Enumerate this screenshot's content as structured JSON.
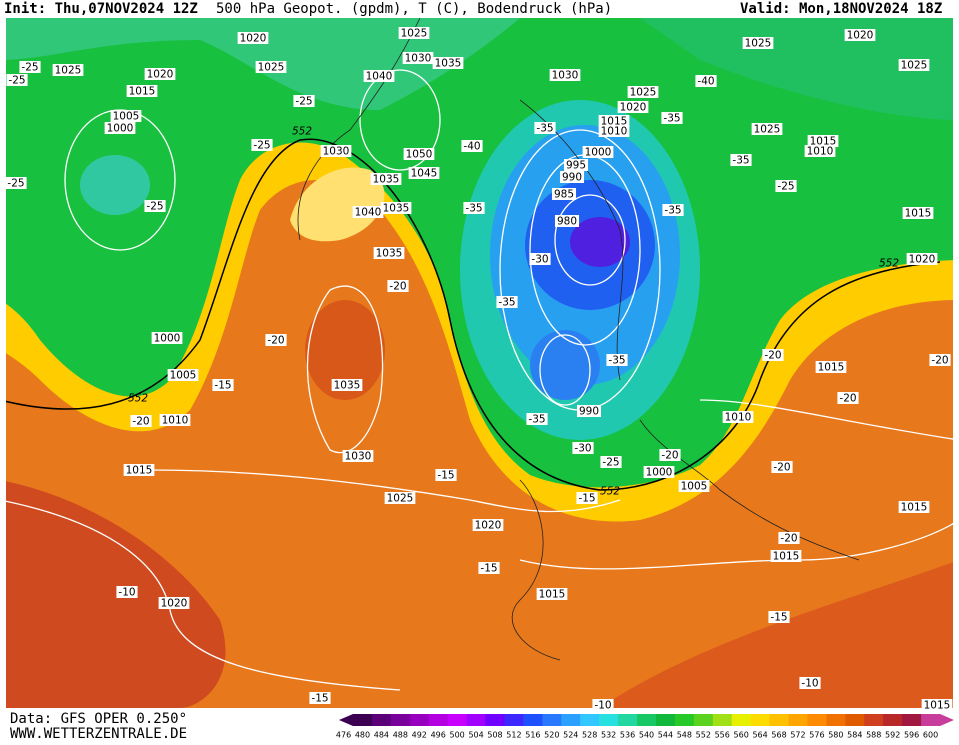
{
  "header": {
    "init": "Init: Thu,07NOV2024 12Z",
    "title": "500 hPa Geopot. (gpdm), T (C), Bodendruck (hPa)",
    "valid": "Valid: Mon,18NOV2024 18Z"
  },
  "footer": {
    "source": "Data: GFS OPER 0.250°",
    "website": "WWW.WETTERZENTRALE.DE"
  },
  "map": {
    "pressure_labels": [
      1020,
      1025,
      1030,
      1035,
      1040,
      1030,
      1025,
      1020,
      1025,
      1025,
      1020,
      1015,
      1025,
      1005,
      1000,
      1020,
      1015,
      1010,
      1025,
      1025,
      1015,
      1010,
      1000,
      995,
      990,
      985,
      980,
      1030,
      1050,
      1035,
      1045,
      1040,
      1035,
      1035,
      1015,
      1020,
      1000,
      1005,
      1035,
      1010,
      990,
      1010,
      1015,
      1030,
      1015,
      1000,
      1005,
      1025,
      1020,
      1015,
      1015,
      1015,
      1020,
      1015
    ],
    "temperature_labels": [
      -25,
      -25,
      -25,
      -25,
      -25,
      -25,
      -40,
      -35,
      -35,
      -40,
      -35,
      -25,
      -35,
      -35,
      -30,
      -35,
      -20,
      -20,
      -15,
      -20,
      -35,
      -30,
      -25,
      -20,
      -35,
      -20,
      -20,
      -20,
      -15,
      -15,
      -20,
      -15,
      -10,
      -15,
      -10,
      -15,
      -10,
      -20
    ],
    "height_labels": [
      552,
      552,
      552,
      552
    ]
  },
  "colorbar": {
    "ticks": [
      476,
      480,
      484,
      488,
      492,
      496,
      500,
      504,
      508,
      512,
      516,
      520,
      524,
      528,
      532,
      536,
      540,
      544,
      548,
      552,
      556,
      560,
      564,
      568,
      572,
      576,
      580,
      584,
      588,
      592,
      596,
      600
    ],
    "colors": [
      "#3c0050",
      "#5a0078",
      "#78009b",
      "#9600be",
      "#b400e0",
      "#c800ff",
      "#9f00ff",
      "#6e00ff",
      "#3c28ff",
      "#1e50ff",
      "#2878ff",
      "#2ca0ff",
      "#30c8ff",
      "#28e0e0",
      "#20d8a0",
      "#18c864",
      "#10b83c",
      "#28c828",
      "#5ad21e",
      "#a0e014",
      "#e6f000",
      "#ffdc00",
      "#ffc000",
      "#ffa500",
      "#ff8c00",
      "#f07000",
      "#e05a00",
      "#d04020",
      "#b82828",
      "#a01840",
      "#c83c9c"
    ]
  }
}
